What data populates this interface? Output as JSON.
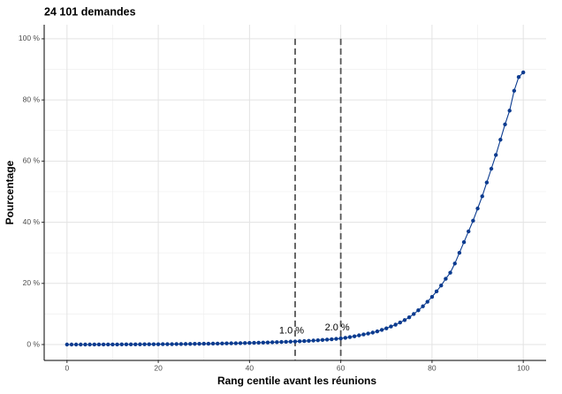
{
  "chart_data": {
    "type": "line",
    "title": "24 101 demandes",
    "x_label": "Rang centile avant les réunions",
    "y_label": "Pourcentage",
    "x": [
      0,
      1,
      2,
      3,
      4,
      5,
      6,
      7,
      8,
      9,
      10,
      11,
      12,
      13,
      14,
      15,
      16,
      17,
      18,
      19,
      20,
      21,
      22,
      23,
      24,
      25,
      26,
      27,
      28,
      29,
      30,
      31,
      32,
      33,
      34,
      35,
      36,
      37,
      38,
      39,
      40,
      41,
      42,
      43,
      44,
      45,
      46,
      47,
      48,
      49,
      50,
      51,
      52,
      53,
      54,
      55,
      56,
      57,
      58,
      59,
      60,
      61,
      62,
      63,
      64,
      65,
      66,
      67,
      68,
      69,
      70,
      71,
      72,
      73,
      74,
      75,
      76,
      77,
      78,
      79,
      80,
      81,
      82,
      83,
      84,
      85,
      86,
      87,
      88,
      89,
      90,
      91,
      92,
      93,
      94,
      95,
      96,
      97,
      98,
      99,
      100
    ],
    "series": [
      {
        "color": "#0b3b8f",
        "values": [
          0,
          0,
          0,
          0,
          0,
          0,
          0.01,
          0.01,
          0.02,
          0.02,
          0.03,
          0.03,
          0.04,
          0.05,
          0.05,
          0.06,
          0.07,
          0.08,
          0.09,
          0.1,
          0.1,
          0.12,
          0.13,
          0.14,
          0.15,
          0.17,
          0.18,
          0.2,
          0.22,
          0.24,
          0.26,
          0.28,
          0.3,
          0.32,
          0.35,
          0.38,
          0.4,
          0.43,
          0.46,
          0.5,
          0.53,
          0.57,
          0.6,
          0.64,
          0.68,
          0.73,
          0.78,
          0.83,
          0.88,
          0.94,
          1.0,
          1.06,
          1.13,
          1.2,
          1.3,
          1.4,
          1.5,
          1.6,
          1.72,
          1.85,
          2.0,
          2.2,
          2.45,
          2.7,
          3.0,
          3.3,
          3.6,
          3.9,
          4.3,
          4.8,
          5.3,
          5.9,
          6.5,
          7.2,
          8.0,
          8.9,
          10.0,
          11.2,
          12.5,
          14.0,
          15.6,
          17.4,
          19.3,
          21.5,
          23.5,
          26.5,
          30.0,
          33.5,
          37.0,
          40.5,
          44.5,
          48.5,
          53.0,
          57.5,
          62.0,
          67.0,
          72.0,
          76.5,
          83.0,
          87.5,
          89.0
        ]
      }
    ],
    "xlim": [
      -5,
      105
    ],
    "ylim": [
      -5.2,
      104.6
    ],
    "xticks": [
      0,
      20,
      40,
      60,
      80,
      100
    ],
    "yticks": [
      {
        "value": 0,
        "label": "0 %"
      },
      {
        "value": 20,
        "label": "20 %"
      },
      {
        "value": 40,
        "label": "40 %"
      },
      {
        "value": 60,
        "label": "60 %"
      },
      {
        "value": 80,
        "label": "80 %"
      },
      {
        "value": 100,
        "label": "100 %"
      }
    ],
    "vlines": [
      50,
      60
    ],
    "annotations": [
      {
        "x": 50,
        "y": 1.0,
        "label": "1.0 %"
      },
      {
        "x": 60,
        "y": 2.0,
        "label": "2.0 %"
      }
    ],
    "grid": true
  }
}
